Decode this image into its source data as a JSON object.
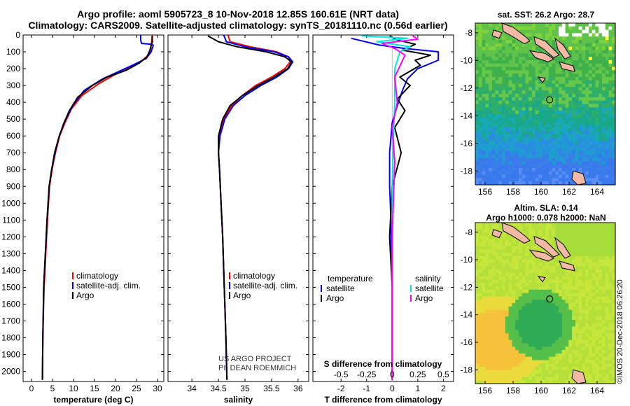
{
  "title_line1": "Argo profile: aoml 5905723_8 10-Nov-2018 12.85S 160.61E (NRT data)",
  "title_line2": "Climatology: CARS2009. Satellite-adjusted climatology: synTS_20181110.nc (0.56d earlier)",
  "map1_title": "sat. SST: 26.2 Argo: 28.7",
  "map2_title_line1": "Altim. SLA: 0.14",
  "map2_title_line2": "Argo h1000: 0.078 h2000: NaN",
  "side_stamp": "©IMOS 20-Dec-2018 06:26:20",
  "credit_line1": "US ARGO PROJECT",
  "credit_line2": "PI: DEAN ROEMMICH",
  "colors": {
    "climatology": "#ff0000",
    "satellite": "#0000ff",
    "argo": "#000000",
    "sal_satellite": "#00e5e5",
    "sal_argo": "#ff00ff"
  },
  "chart_data": [
    {
      "type": "line",
      "name": "temperature",
      "xlabel": "temperature (deg C)",
      "ylabel": "",
      "xlim": [
        -2,
        31.5
      ],
      "ylim": [
        0,
        2060
      ],
      "y_inverted": true,
      "xticks": [
        0,
        5,
        10,
        15,
        20,
        25,
        30
      ],
      "yticks": [
        0,
        100,
        200,
        300,
        400,
        500,
        600,
        700,
        800,
        900,
        1000,
        1100,
        1200,
        1300,
        1400,
        1500,
        1600,
        1700,
        1800,
        1900,
        2000
      ],
      "legend": [
        "climatology",
        "satellite-adj. clim.",
        "Argo"
      ],
      "series": [
        {
          "name": "climatology",
          "color": "#ff0000",
          "x": [
            28.8,
            28.6,
            28.4,
            27.8,
            26.0,
            23.0,
            19.5,
            16.0,
            12.0,
            9.5,
            8.0,
            6.7,
            5.7,
            4.9,
            4.3,
            3.8,
            3.4,
            3.0,
            2.7,
            2.6
          ],
          "y": [
            0,
            40,
            80,
            120,
            160,
            200,
            240,
            290,
            360,
            440,
            520,
            600,
            700,
            800,
            900,
            1100,
            1300,
            1500,
            1800,
            2050
          ]
        },
        {
          "name": "satellite-adj. clim.",
          "color": "#0000ff",
          "x": [
            26.0,
            26.0,
            26.2,
            28.5,
            29.0,
            28.5,
            27.3,
            24.0,
            20.5,
            17.0,
            12.5,
            9.8,
            8.0,
            6.6,
            5.6,
            4.8,
            4.2,
            3.7,
            3.3,
            2.9,
            2.7,
            2.6
          ],
          "y": [
            0,
            30,
            50,
            55,
            60,
            100,
            140,
            180,
            220,
            260,
            330,
            420,
            510,
            600,
            700,
            800,
            900,
            1100,
            1300,
            1500,
            1800,
            2050
          ]
        },
        {
          "name": "Argo",
          "color": "#000000",
          "x": [
            28.7,
            28.8,
            28.5,
            28.2,
            27.5,
            25.5,
            22.5,
            18.0,
            14.5,
            11.0,
            9.0,
            7.6,
            6.5,
            5.5,
            4.8,
            4.2,
            3.7,
            3.3,
            2.9,
            2.7,
            2.6
          ],
          "y": [
            5,
            40,
            60,
            90,
            130,
            170,
            210,
            250,
            300,
            370,
            450,
            530,
            610,
            700,
            800,
            900,
            1100,
            1300,
            1500,
            1800,
            2050
          ]
        }
      ]
    },
    {
      "type": "line",
      "name": "salinity",
      "xlabel": "salinity",
      "ylabel": "",
      "xlim": [
        33.55,
        36.2
      ],
      "ylim": [
        0,
        2060
      ],
      "y_inverted": true,
      "xticks": [
        34,
        34.5,
        35,
        35.5,
        36
      ],
      "legend": [
        "climatology",
        "satellite-adj. clim.",
        "Argo"
      ],
      "series": [
        {
          "name": "climatology",
          "color": "#ff0000",
          "x": [
            34.68,
            34.72,
            35.1,
            35.6,
            35.82,
            35.85,
            35.75,
            35.5,
            35.2,
            34.95,
            34.75,
            34.6,
            34.52,
            34.5,
            34.52,
            34.55,
            34.58,
            34.6,
            34.62,
            34.64,
            34.66
          ],
          "y": [
            0,
            40,
            70,
            100,
            130,
            160,
            200,
            250,
            300,
            360,
            420,
            500,
            600,
            700,
            800,
            1000,
            1200,
            1400,
            1600,
            1800,
            2050
          ]
        },
        {
          "name": "satellite-adj. clim.",
          "color": "#0000ff",
          "x": [
            34.6,
            34.65,
            35.0,
            35.55,
            35.82,
            35.9,
            35.82,
            35.6,
            35.3,
            35.0,
            34.78,
            34.62,
            34.53,
            34.5,
            34.52,
            34.55,
            34.58,
            34.6,
            34.62,
            34.64,
            34.66
          ],
          "y": [
            0,
            40,
            70,
            100,
            130,
            160,
            200,
            250,
            300,
            360,
            420,
            500,
            600,
            700,
            800,
            1000,
            1200,
            1400,
            1600,
            1800,
            2050
          ]
        },
        {
          "name": "Argo",
          "color": "#000000",
          "x": [
            34.3,
            34.5,
            34.85,
            35.4,
            35.75,
            35.88,
            35.8,
            35.55,
            35.25,
            34.95,
            34.72,
            34.58,
            34.5,
            34.5,
            34.52,
            34.55,
            34.58,
            34.6,
            34.62,
            34.64,
            34.66
          ],
          "y": [
            5,
            40,
            70,
            100,
            130,
            160,
            200,
            250,
            300,
            360,
            420,
            500,
            600,
            700,
            800,
            1000,
            1200,
            1400,
            1600,
            1800,
            2050
          ]
        }
      ]
    },
    {
      "type": "line",
      "name": "difference",
      "xlabel": "T difference from climatology",
      "ylabel": "",
      "annotation": "S difference from climatology",
      "xlim": [
        -3.1,
        2.4
      ],
      "ylim": [
        0,
        2060
      ],
      "y_inverted": true,
      "xticks": [
        -2,
        -1,
        0,
        1,
        2
      ],
      "xticks_s": [
        "-0.5",
        "-0.25",
        "0",
        "0.25",
        "0.5"
      ],
      "legend": {
        "temperature": "temperature",
        "salinity": "salinity",
        "satellite": "satellite",
        "argo": "Argo"
      },
      "series": [
        {
          "name": "T satellite",
          "color": "#0000ff",
          "x": [
            -1.6,
            -0.5,
            0.5,
            1.8,
            1.8,
            1.0,
            0.6,
            0.4,
            0.2,
            0.0,
            -0.1,
            -0.1,
            -0.05,
            0,
            0
          ],
          "y": [
            20,
            60,
            80,
            100,
            150,
            200,
            260,
            330,
            420,
            520,
            700,
            900,
            1100,
            1500,
            2050
          ]
        },
        {
          "name": "T Argo",
          "color": "#000000",
          "x": [
            -0.1,
            0.2,
            0.9,
            0.4,
            1.5,
            0.9,
            1.1,
            0.3,
            0.7,
            0.2,
            0.5,
            0.1,
            0.35,
            0.0,
            -0.1,
            0.0,
            0.0
          ],
          "y": [
            5,
            30,
            55,
            90,
            120,
            150,
            180,
            250,
            300,
            380,
            450,
            550,
            700,
            900,
            1200,
            1500,
            2050
          ]
        },
        {
          "name": "S satellite",
          "color": "#00e5e5",
          "x": [
            -1.2,
            0.6,
            -0.6,
            0.7,
            0.3,
            0.1,
            0.1,
            0.05,
            0.0,
            0.0,
            0.0
          ],
          "y": [
            5,
            20,
            40,
            70,
            100,
            200,
            400,
            600,
            900,
            1400,
            2050
          ]
        },
        {
          "name": "S Argo",
          "color": "#ff00ff",
          "x": [
            0.8,
            1.0,
            -0.4,
            0.1,
            0.5,
            0.1,
            0.2,
            0.0,
            0.1,
            0.0,
            0.0
          ],
          "y": [
            5,
            25,
            50,
            80,
            120,
            250,
            400,
            550,
            750,
            1200,
            2050
          ]
        }
      ]
    },
    {
      "type": "heatmap",
      "name": "sst_map",
      "title": "sat. SST: 26.2 Argo: 28.7",
      "xlim": [
        155.3,
        165.3
      ],
      "ylim": [
        -19.0,
        -7.3
      ],
      "xticks": [
        156,
        158,
        160,
        162,
        164
      ],
      "yticks": [
        -8,
        -10,
        -12,
        -14,
        -16,
        -18
      ],
      "float_position": {
        "lon": 160.61,
        "lat": -12.85
      }
    },
    {
      "type": "heatmap",
      "name": "sla_map",
      "title": "Altim. SLA: 0.14",
      "xlim": [
        155.3,
        165.3
      ],
      "ylim": [
        -19.0,
        -7.3
      ],
      "xticks": [
        156,
        158,
        160,
        162,
        164
      ],
      "yticks": [
        -8,
        -10,
        -12,
        -14,
        -16,
        -18
      ],
      "float_position": {
        "lon": 160.61,
        "lat": -12.85
      }
    }
  ]
}
